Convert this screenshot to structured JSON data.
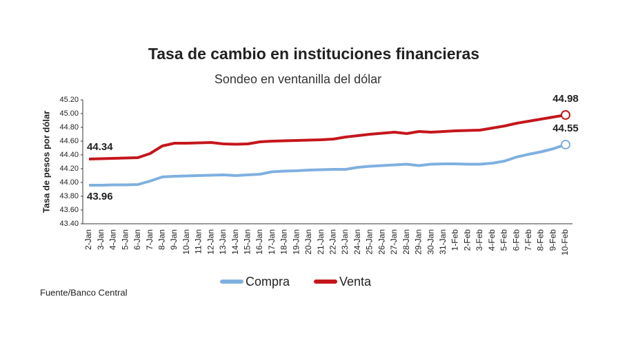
{
  "chart_data": {
    "type": "line",
    "title": "Tasa de cambio en instituciones financieras",
    "subtitle": "Sondeo en ventanilla del dólar",
    "y_label": "Tasa de pesos por dólar",
    "source": "Fuente/Banco Central",
    "categories": [
      "2-Jan",
      "3-Jan",
      "4-Jan",
      "5-Jan",
      "6-Jan",
      "7-Jan",
      "8-Jan",
      "9-Jan",
      "10-Jan",
      "11-Jan",
      "12-Jan",
      "13-Jan",
      "14-Jan",
      "15-Jan",
      "16-Jan",
      "17-Jan",
      "18-Jan",
      "19-Jan",
      "20-Jan",
      "21-Jan",
      "22-Jan",
      "23-Jan",
      "24-Jan",
      "25-Jan",
      "26-Jan",
      "27-Jan",
      "28-Jan",
      "29-Jan",
      "30-Jan",
      "31-Jan",
      "1-Feb",
      "2-Feb",
      "3-Feb",
      "4-Feb",
      "5-Feb",
      "6-Feb",
      "7-Feb",
      "8-Feb",
      "9-Feb",
      "10-Feb"
    ],
    "series": [
      {
        "name": "Compra",
        "color": "#7fb0e0",
        "values": [
          43.96,
          43.96,
          43.965,
          43.965,
          43.97,
          44.02,
          44.08,
          44.09,
          44.095,
          44.1,
          44.105,
          44.11,
          44.1,
          44.11,
          44.12,
          44.155,
          44.165,
          44.17,
          44.18,
          44.185,
          44.19,
          44.19,
          44.22,
          44.235,
          44.245,
          44.255,
          44.265,
          44.245,
          44.265,
          44.27,
          44.27,
          44.265,
          44.265,
          44.28,
          44.31,
          44.37,
          44.41,
          44.445,
          44.49,
          44.55
        ]
      },
      {
        "name": "Venta",
        "color": "#c4161c",
        "values": [
          44.34,
          44.345,
          44.35,
          44.355,
          44.36,
          44.42,
          44.53,
          44.57,
          44.57,
          44.575,
          44.58,
          44.56,
          44.555,
          44.56,
          44.59,
          44.6,
          44.605,
          44.61,
          44.615,
          44.62,
          44.63,
          44.66,
          44.68,
          44.7,
          44.715,
          44.73,
          44.71,
          44.74,
          44.73,
          44.74,
          44.75,
          44.755,
          44.76,
          44.79,
          44.82,
          44.86,
          44.89,
          44.92,
          44.95,
          44.98
        ]
      }
    ],
    "ylim": [
      43.4,
      45.2
    ],
    "yticks": [
      {
        "value": 43.4,
        "label": "43.40"
      },
      {
        "value": 43.6,
        "label": "43.60"
      },
      {
        "value": 43.8,
        "label": "43.80"
      },
      {
        "value": 44.0,
        "label": "44.00"
      },
      {
        "value": 44.2,
        "label": "44.20"
      },
      {
        "value": 44.4,
        "label": "44.40"
      },
      {
        "value": 44.6,
        "label": "44.60"
      },
      {
        "value": 44.8,
        "label": "44.80"
      },
      {
        "value": 45.0,
        "label": "45.00"
      },
      {
        "value": 45.2,
        "label": "45.20"
      }
    ],
    "grid": false,
    "legend": "bottom"
  }
}
